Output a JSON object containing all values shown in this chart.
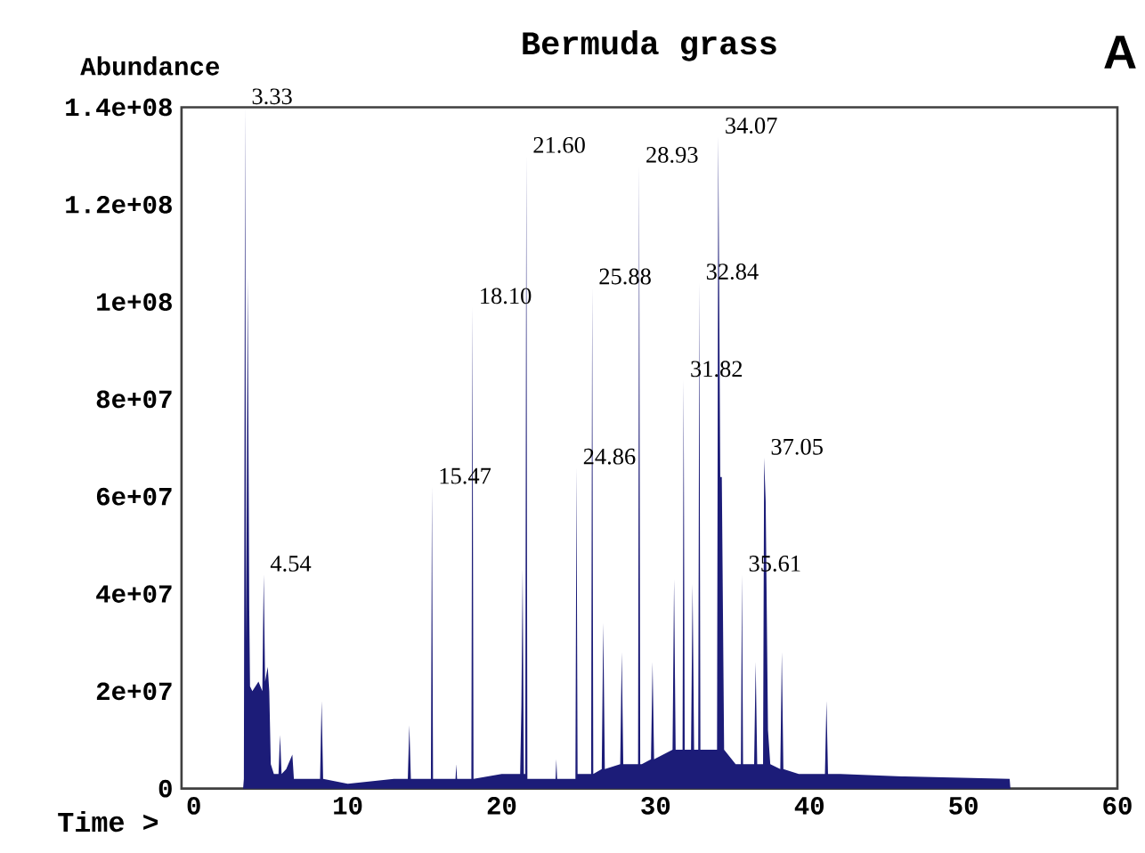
{
  "chart_data": {
    "type": "area",
    "title": "Bermuda grass",
    "xlabel": "Time >",
    "ylabel": "Abundance",
    "xlim": [
      -0.8,
      60
    ],
    "xticks": [
      0,
      10,
      20,
      30,
      40,
      50,
      60
    ],
    "ylim": [
      0,
      140000000
    ],
    "yticks": [
      {
        "value": 0,
        "label": "0"
      },
      {
        "value": 20000000,
        "label": "2e+07"
      },
      {
        "value": 40000000,
        "label": "4e+07"
      },
      {
        "value": 60000000,
        "label": "6e+07"
      },
      {
        "value": 80000000,
        "label": "8e+07"
      },
      {
        "value": 100000000,
        "label": "1e+08"
      },
      {
        "value": 120000000,
        "label": "1.2e+08"
      },
      {
        "value": 140000000,
        "label": "1.4e+08"
      }
    ],
    "grid": false,
    "marker": "none",
    "series": [
      {
        "color": "#1c1c78",
        "x": [
          3.2,
          3.25,
          3.33,
          3.4,
          3.5,
          3.6,
          3.65,
          3.8,
          4.2,
          4.45,
          4.54,
          4.63,
          4.8,
          4.9,
          5.0,
          5.2,
          5.5,
          5.6,
          5.7,
          6.0,
          6.4,
          6.5,
          7.0,
          8.2,
          8.3,
          8.4,
          10.0,
          13.0,
          13.9,
          14.0,
          14.1,
          15.4,
          15.47,
          15.54,
          17.0,
          17.05,
          17.1,
          18.03,
          18.1,
          18.17,
          20.0,
          21.2,
          21.28,
          21.36,
          21.44,
          21.53,
          21.6,
          21.67,
          23.5,
          23.55,
          23.6,
          24.79,
          24.86,
          24.93,
          25.81,
          25.88,
          25.95,
          26.5,
          26.6,
          26.7,
          27.7,
          27.8,
          27.9,
          28.86,
          28.93,
          29.0,
          29.1,
          29.7,
          29.8,
          29.9,
          31.1,
          31.2,
          31.3,
          31.75,
          31.82,
          31.89,
          32.3,
          32.4,
          32.5,
          32.77,
          32.84,
          32.91,
          33.99,
          34.07,
          34.2,
          34.3,
          34.45,
          35.2,
          35.54,
          35.61,
          35.68,
          36.4,
          36.5,
          36.6,
          36.98,
          37.05,
          37.15,
          37.3,
          37.45,
          38.1,
          38.2,
          38.3,
          39.3,
          41.0,
          41.1,
          41.2,
          42.0,
          46.0,
          53.0,
          53.05
        ],
        "values": [
          0,
          2000000,
          140000000,
          30000000,
          105000000,
          37000000,
          21000000,
          20000000,
          22000000,
          20000000,
          44000000,
          22000000,
          25000000,
          20000000,
          5000000,
          3000000,
          3000000,
          11000000,
          3000000,
          4000000,
          7000000,
          2000000,
          2000000,
          2000000,
          18000000,
          2000000,
          1000000,
          2000000,
          2000000,
          13000000,
          2000000,
          2000000,
          62000000,
          2000000,
          2000000,
          5000000,
          2000000,
          2000000,
          99000000,
          2000000,
          3000000,
          3000000,
          17000000,
          45000000,
          3000000,
          3000000,
          130000000,
          2000000,
          2000000,
          6000000,
          2000000,
          2000000,
          66000000,
          3000000,
          3000000,
          103000000,
          3000000,
          4000000,
          34000000,
          4000000,
          5000000,
          28000000,
          5000000,
          5000000,
          128000000,
          5000000,
          5000000,
          6000000,
          26000000,
          6000000,
          8000000,
          43000000,
          8000000,
          8000000,
          84000000,
          8000000,
          8000000,
          42000000,
          8000000,
          8000000,
          104000000,
          8000000,
          8000000,
          134000000,
          64000000,
          64000000,
          8000000,
          5000000,
          5000000,
          44000000,
          5000000,
          5000000,
          26000000,
          5000000,
          5000000,
          68000000,
          59000000,
          12000000,
          5000000,
          4000000,
          28000000,
          4000000,
          3000000,
          3000000,
          18000000,
          3000000,
          3000000,
          2500000,
          2000000,
          0
        ]
      }
    ],
    "annotations": [
      "A",
      {
        "text": "3.33",
        "x": 3.33,
        "y": 140000000
      },
      {
        "text": "4.54",
        "x": 4.54,
        "y": 44000000
      },
      {
        "text": "15.47",
        "x": 15.47,
        "y": 62000000
      },
      {
        "text": "18.10",
        "x": 18.1,
        "y": 99000000
      },
      {
        "text": "21.60",
        "x": 21.6,
        "y": 130000000
      },
      {
        "text": "24.86",
        "x": 24.86,
        "y": 66000000
      },
      {
        "text": "25.88",
        "x": 25.88,
        "y": 103000000
      },
      {
        "text": "28.93",
        "x": 28.93,
        "y": 128000000
      },
      {
        "text": "31.82",
        "x": 31.82,
        "y": 84000000
      },
      {
        "text": "32.84",
        "x": 32.84,
        "y": 104000000
      },
      {
        "text": "34.07",
        "x": 34.07,
        "y": 134000000
      },
      {
        "text": "35.61",
        "x": 35.61,
        "y": 44000000
      },
      {
        "text": "37.05",
        "x": 37.05,
        "y": 68000000
      }
    ]
  }
}
